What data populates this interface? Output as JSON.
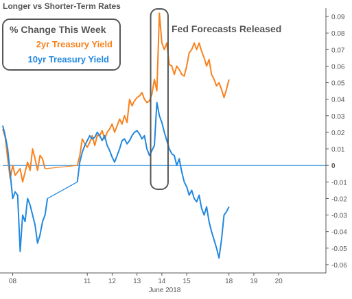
{
  "chart_data": {
    "type": "line",
    "title": "Longer vs Shorter-Term Rates",
    "xlabel": "June 2018",
    "ylabel": "",
    "x_ticks": [
      "08",
      "11",
      "12",
      "13",
      "14",
      "15",
      "18",
      "19",
      "20"
    ],
    "y_ticks": [
      "0.09",
      "0.08",
      "0.07",
      "0.06",
      "0.05",
      "0.04",
      "0.03",
      "0.02",
      "0.01",
      "0",
      "-0.01",
      "-0.02",
      "-0.03",
      "-0.04",
      "-0.05",
      "-0.06"
    ],
    "ylim": [
      -0.065,
      0.095
    ],
    "xlim": [
      7.6,
      20.6
    ],
    "grid": false,
    "legend": {
      "title": "% Change This Week",
      "placement": "top-left",
      "entries": [
        "2yr Treasury Yield",
        "10yr Treasury Yield"
      ]
    },
    "annotation": {
      "text": "Fed Forecasts Released",
      "x_start": 13.55,
      "x_end": 14.25
    },
    "series": [
      {
        "name": "2yr Treasury Yield",
        "color": "#F7821E",
        "points": [
          [
            7.6,
            0.022
          ],
          [
            7.7,
            0.017
          ],
          [
            7.8,
            0.004
          ],
          [
            7.9,
            -0.008
          ],
          [
            8.0,
            0.0
          ],
          [
            8.1,
            -0.006
          ],
          [
            8.2,
            -0.004
          ],
          [
            8.3,
            -0.002
          ],
          [
            8.4,
            -0.01
          ],
          [
            8.5,
            -0.004
          ],
          [
            8.6,
            0.002
          ],
          [
            8.7,
            -0.003
          ],
          [
            8.8,
            0.01
          ],
          [
            8.9,
            0.004
          ],
          [
            9.0,
            -0.003
          ],
          [
            9.1,
            0.006
          ],
          [
            9.2,
            0.004
          ],
          [
            9.3,
            -0.002
          ],
          [
            10.6,
            0.0
          ],
          [
            10.7,
            0.006
          ],
          [
            10.8,
            0.016
          ],
          [
            10.9,
            0.013
          ],
          [
            11.0,
            0.011
          ],
          [
            11.1,
            0.014
          ],
          [
            11.2,
            0.018
          ],
          [
            11.3,
            0.012
          ],
          [
            11.4,
            0.018
          ],
          [
            11.5,
            0.018
          ],
          [
            11.6,
            0.021
          ],
          [
            11.7,
            0.016
          ],
          [
            11.8,
            0.02
          ],
          [
            11.9,
            0.022
          ],
          [
            12.0,
            0.025
          ],
          [
            12.1,
            0.02
          ],
          [
            12.2,
            0.024
          ],
          [
            12.3,
            0.028
          ],
          [
            12.4,
            0.025
          ],
          [
            12.5,
            0.03
          ],
          [
            12.6,
            0.026
          ],
          [
            12.7,
            0.04
          ],
          [
            12.8,
            0.036
          ],
          [
            12.9,
            0.039
          ],
          [
            13.0,
            0.041
          ],
          [
            13.1,
            0.042
          ],
          [
            13.2,
            0.044
          ],
          [
            13.3,
            0.04
          ],
          [
            13.4,
            0.038
          ],
          [
            13.5,
            0.039
          ],
          [
            13.6,
            0.043
          ],
          [
            13.7,
            0.052
          ],
          [
            13.8,
            0.045
          ],
          [
            13.9,
            0.092
          ],
          [
            14.0,
            0.074
          ],
          [
            14.1,
            0.07
          ],
          [
            14.2,
            0.074
          ],
          [
            14.3,
            0.061
          ],
          [
            14.4,
            0.06
          ],
          [
            14.5,
            0.055
          ],
          [
            14.6,
            0.06
          ],
          [
            14.7,
            0.058
          ],
          [
            14.8,
            0.055
          ],
          [
            14.9,
            0.054
          ],
          [
            15.0,
            0.06
          ],
          [
            15.1,
            0.068
          ],
          [
            15.2,
            0.07
          ],
          [
            15.3,
            0.074
          ],
          [
            15.4,
            0.07
          ],
          [
            15.5,
            0.074
          ],
          [
            15.6,
            0.069
          ],
          [
            15.7,
            0.065
          ],
          [
            15.8,
            0.06
          ],
          [
            15.9,
            0.064
          ],
          [
            16.0,
            0.055
          ],
          [
            16.1,
            0.052
          ],
          [
            16.2,
            0.048
          ],
          [
            16.3,
            0.05
          ],
          [
            16.4,
            0.046
          ],
          [
            16.5,
            0.041
          ],
          [
            16.6,
            0.046
          ],
          [
            16.7,
            0.052
          ]
        ]
      },
      {
        "name": "10yr Treasury Yield",
        "color": "#2188E0",
        "points": [
          [
            7.6,
            0.024
          ],
          [
            7.7,
            0.018
          ],
          [
            7.8,
            0.01
          ],
          [
            7.9,
            -0.005
          ],
          [
            8.0,
            -0.02
          ],
          [
            8.1,
            -0.016
          ],
          [
            8.2,
            -0.018
          ],
          [
            8.3,
            -0.052
          ],
          [
            8.4,
            -0.03
          ],
          [
            8.5,
            -0.034
          ],
          [
            8.6,
            -0.02
          ],
          [
            8.7,
            -0.024
          ],
          [
            8.8,
            -0.03
          ],
          [
            8.9,
            -0.036
          ],
          [
            9.0,
            -0.047
          ],
          [
            9.1,
            -0.042
          ],
          [
            9.2,
            -0.034
          ],
          [
            9.3,
            -0.03
          ],
          [
            9.4,
            -0.02
          ],
          [
            10.6,
            -0.01
          ],
          [
            10.7,
            0.002
          ],
          [
            10.8,
            0.008
          ],
          [
            10.9,
            0.012
          ],
          [
            11.0,
            0.015
          ],
          [
            11.1,
            0.018
          ],
          [
            11.2,
            0.016
          ],
          [
            11.3,
            0.017
          ],
          [
            11.4,
            0.02
          ],
          [
            11.5,
            0.018
          ],
          [
            11.6,
            0.015
          ],
          [
            11.7,
            0.018
          ],
          [
            11.8,
            0.012
          ],
          [
            11.9,
            0.009
          ],
          [
            12.0,
            0.005
          ],
          [
            12.1,
            0.002
          ],
          [
            12.2,
            0.006
          ],
          [
            12.3,
            0.01
          ],
          [
            12.4,
            0.015
          ],
          [
            12.5,
            0.016
          ],
          [
            12.6,
            0.013
          ],
          [
            12.7,
            0.015
          ],
          [
            12.8,
            0.018
          ],
          [
            12.9,
            0.02
          ],
          [
            13.0,
            0.021
          ],
          [
            13.1,
            0.019
          ],
          [
            13.2,
            0.016
          ],
          [
            13.3,
            0.018
          ],
          [
            13.4,
            0.01
          ],
          [
            13.5,
            0.006
          ],
          [
            13.6,
            0.009
          ],
          [
            13.7,
            0.012
          ],
          [
            13.8,
            0.038
          ],
          [
            13.9,
            0.03
          ],
          [
            14.0,
            0.026
          ],
          [
            14.1,
            0.02
          ],
          [
            14.2,
            0.015
          ],
          [
            14.3,
            0.01
          ],
          [
            14.4,
            0.007
          ],
          [
            14.5,
            0.006
          ],
          [
            14.6,
            0.0
          ],
          [
            14.7,
            0.004
          ],
          [
            14.8,
            -0.004
          ],
          [
            14.9,
            -0.01
          ],
          [
            15.0,
            -0.013
          ],
          [
            15.1,
            -0.018
          ],
          [
            15.2,
            -0.015
          ],
          [
            15.3,
            -0.02
          ],
          [
            15.4,
            -0.022
          ],
          [
            15.5,
            -0.018
          ],
          [
            15.6,
            -0.026
          ],
          [
            15.7,
            -0.03
          ],
          [
            15.8,
            -0.025
          ],
          [
            15.9,
            -0.034
          ],
          [
            16.0,
            -0.04
          ],
          [
            16.1,
            -0.045
          ],
          [
            16.2,
            -0.05
          ],
          [
            16.3,
            -0.056
          ],
          [
            16.4,
            -0.045
          ],
          [
            16.5,
            -0.03
          ],
          [
            16.6,
            -0.028
          ],
          [
            16.7,
            -0.025
          ]
        ]
      }
    ]
  }
}
